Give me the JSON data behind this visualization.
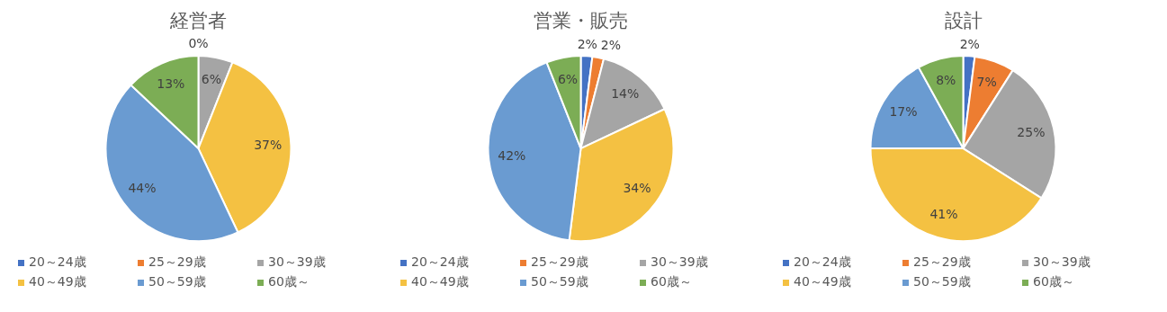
{
  "chart_data": [
    {
      "type": "pie",
      "title": "経営者",
      "categories": [
        "20～24歳",
        "25～29歳",
        "30～39歳",
        "40～49歳",
        "50～59歳",
        "60歳～"
      ],
      "values": [
        0,
        0,
        6,
        37,
        44,
        13
      ],
      "value_labels": [
        "0%",
        null,
        "6%",
        "37%",
        "44%",
        "13%"
      ],
      "colors": [
        "#4472c4",
        "#ed7d31",
        "#a5a5a5",
        "#f4c142",
        "#6a9bd1",
        "#7cad55"
      ],
      "legend": "bottom"
    },
    {
      "type": "pie",
      "title": "営業・販売",
      "categories": [
        "20～24歳",
        "25～29歳",
        "30～39歳",
        "40～49歳",
        "50～59歳",
        "60歳～"
      ],
      "values": [
        2,
        2,
        14,
        34,
        42,
        6
      ],
      "value_labels": [
        "2%",
        "2%",
        "14%",
        "34%",
        "42%",
        "6%"
      ],
      "colors": [
        "#4472c4",
        "#ed7d31",
        "#a5a5a5",
        "#f4c142",
        "#6a9bd1",
        "#7cad55"
      ],
      "legend": "bottom"
    },
    {
      "type": "pie",
      "title": "設計",
      "categories": [
        "20～24歳",
        "25～29歳",
        "30～39歳",
        "40～49歳",
        "50～59歳",
        "60歳～"
      ],
      "values": [
        2,
        7,
        25,
        41,
        17,
        8
      ],
      "value_labels": [
        "2%",
        "7%",
        "25%",
        "41%",
        "17%",
        "8%"
      ],
      "colors": [
        "#4472c4",
        "#ed7d31",
        "#a5a5a5",
        "#f4c142",
        "#6a9bd1",
        "#7cad55"
      ],
      "legend": "bottom"
    }
  ]
}
